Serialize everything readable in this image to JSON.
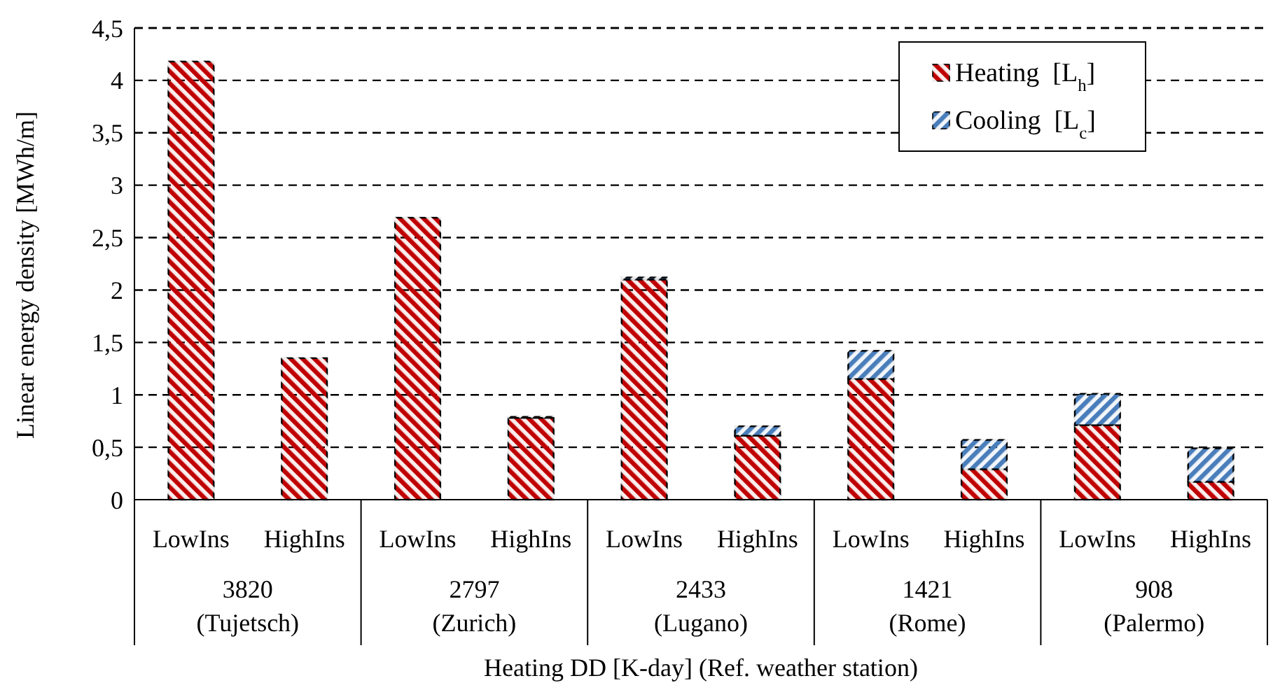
{
  "chart_data": {
    "type": "bar",
    "stacked": true,
    "categories": [
      "LowIns",
      "HighIns",
      "LowIns",
      "HighIns",
      "LowIns",
      "HighIns",
      "LowIns",
      "HighIns",
      "LowIns",
      "HighIns"
    ],
    "series": [
      {
        "name": "Heating  [L$_{h}$]",
        "color": "#c00000",
        "values": [
          4.18,
          1.35,
          2.69,
          0.78,
          2.1,
          0.61,
          1.15,
          0.29,
          0.71,
          0.17
        ]
      },
      {
        "name": "Cooling  [L$_{c}$]",
        "color": "#4a7ebb",
        "values": [
          0,
          0,
          0,
          0.01,
          0.02,
          0.09,
          0.27,
          0.28,
          0.3,
          0.32
        ]
      }
    ],
    "ylabel": "Linear energy density [MWh/m]",
    "xlabel": "Heating DD [K-day] (Ref. weather station)",
    "annotations": [
      "3820 (Tujetsch)",
      "2797 (Zurich)",
      "2433 (Lugano)",
      "1421 (Rome)",
      "908 (Palermo)"
    ],
    "ylim": [
      0,
      4.5
    ],
    "yticks": [
      0,
      {
        "value": 0.5,
        "label": "0,5"
      },
      1,
      {
        "value": 1.5,
        "label": "1,5"
      },
      2,
      {
        "value": 2.5,
        "label": "2,5"
      },
      3,
      {
        "value": 3.5,
        "label": "3,5"
      },
      4,
      {
        "value": 4.5,
        "label": "4,5"
      }
    ],
    "grid": "y",
    "legend": "top right"
  }
}
